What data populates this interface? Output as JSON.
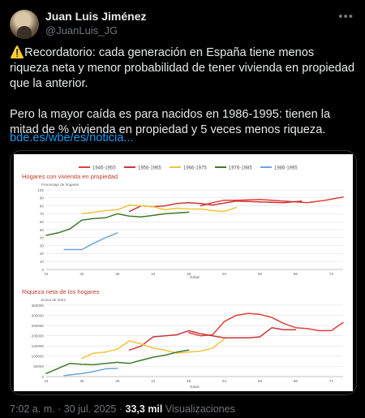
{
  "author": {
    "name": "Juan Luis Jiménez",
    "handle": "@JuanLuis_JG"
  },
  "more_icon": "more-options-icon",
  "tweet": {
    "warning_emoji": "⚠️",
    "line1": "Recordatorio: cada generación en España tiene menos riqueza neta y menor probabilidad de tener vivienda en propiedad que la anterior.",
    "line2": "Pero la mayor caída es para nacidos en 1986-1995: tienen la mitad de % vivienda en propiedad y 5 veces menos riqueza.",
    "link": "bde.es/wbe/es/noticia..."
  },
  "footer": {
    "time": "7:02 a. m.",
    "sep": "·",
    "date": "30 jul. 2025",
    "sep2": "·",
    "views": "33,3 mil",
    "views_label": "Visualizaciones"
  },
  "colors": {
    "1946-1955": "#e0403a",
    "1956-1965": "#c9353a",
    "1966-1975": "#f5c23b",
    "1976-1985": "#3f7a2c",
    "1986-1995": "#6aa6dd"
  },
  "chart_data": [
    {
      "type": "line",
      "title": "Hogares con vivienda en propiedad",
      "subtitle": "Porcentaje de hogares",
      "xlabel": "Edad",
      "xlim": [
        24,
        74
      ],
      "x_ticks": [
        "24",
        "30",
        "36",
        "42",
        "48",
        "54",
        "60",
        "66",
        "72"
      ],
      "ylim": [
        0,
        100
      ],
      "y_ticks": [
        "0",
        "10",
        "20",
        "30",
        "40",
        "50",
        "60",
        "70",
        "80",
        "90",
        "100"
      ],
      "legend_position": "top",
      "series": [
        {
          "name": "1946-1955",
          "x": [
            50,
            52,
            54,
            56,
            60,
            64,
            68,
            71,
            74
          ],
          "values": [
            80,
            84,
            87,
            87,
            88,
            86,
            84,
            87,
            91
          ]
        },
        {
          "name": "1956-1965",
          "x": [
            38,
            40,
            42,
            44,
            46,
            48,
            50,
            52,
            56,
            60,
            64,
            67
          ],
          "values": [
            73,
            80,
            79,
            80,
            83,
            84,
            83,
            81,
            86,
            85,
            84,
            86
          ]
        },
        {
          "name": "1966-1975",
          "x": [
            30,
            32,
            34,
            36,
            38,
            40,
            42,
            44,
            46,
            48,
            50,
            52,
            54,
            56
          ],
          "values": [
            70,
            72,
            74,
            75,
            81,
            80,
            79,
            75,
            77,
            76,
            76,
            74,
            73,
            78
          ]
        },
        {
          "name": "1976-1985",
          "x": [
            24,
            26,
            28,
            30,
            32,
            34,
            36,
            38,
            40,
            42,
            44,
            46,
            48
          ],
          "values": [
            43,
            46,
            51,
            62,
            64,
            65,
            70,
            67,
            66,
            68,
            70,
            71,
            72
          ]
        },
        {
          "name": "1986-1995",
          "x": [
            27,
            30,
            32,
            34,
            36
          ],
          "values": [
            25,
            25,
            33,
            40,
            46
          ]
        }
      ]
    },
    {
      "type": "line",
      "title": "Riqueza neta de los hogares",
      "subtitle": "Euros de 2022",
      "xlabel": "Edad",
      "xlim": [
        24,
        74
      ],
      "x_ticks": [
        "24",
        "30",
        "36",
        "42",
        "48",
        "54",
        "60",
        "66",
        "72"
      ],
      "ylim": [
        0,
        350000
      ],
      "y_ticks": [
        "0",
        "50000",
        "100000",
        "150000",
        "200000",
        "250000",
        "300000",
        "350000"
      ],
      "series": [
        {
          "name": "1946-1955",
          "x": [
            48,
            50,
            52,
            54,
            56,
            58,
            60,
            62,
            64,
            66,
            68,
            70,
            72,
            74
          ],
          "values": [
            215000,
            200000,
            205000,
            270000,
            300000,
            310000,
            305000,
            290000,
            260000,
            240000,
            235000,
            225000,
            225000,
            265000
          ]
        },
        {
          "name": "1956-1965",
          "x": [
            38,
            40,
            42,
            46,
            48,
            50,
            52,
            54,
            56,
            58,
            60,
            62,
            64,
            66
          ],
          "values": [
            130000,
            150000,
            195000,
            205000,
            225000,
            210000,
            200000,
            190000,
            190000,
            190000,
            195000,
            240000,
            230000,
            230000
          ]
        },
        {
          "name": "1966-1975",
          "x": [
            30,
            32,
            34,
            36,
            38,
            40,
            42,
            44,
            46,
            48,
            50,
            52,
            54
          ],
          "values": [
            90000,
            115000,
            120000,
            135000,
            175000,
            160000,
            140000,
            130000,
            115000,
            120000,
            125000,
            140000,
            185000
          ]
        },
        {
          "name": "1976-1985",
          "x": [
            24,
            26,
            28,
            30,
            32,
            34,
            36,
            38,
            40,
            42,
            44,
            46,
            48
          ],
          "values": [
            15000,
            40000,
            65000,
            60000,
            58000,
            65000,
            70000,
            65000,
            80000,
            95000,
            105000,
            120000,
            130000
          ]
        },
        {
          "name": "1986-1995",
          "x": [
            27,
            30,
            32,
            34,
            36
          ],
          "values": [
            5000,
            15000,
            25000,
            38000,
            40000
          ]
        }
      ]
    }
  ]
}
